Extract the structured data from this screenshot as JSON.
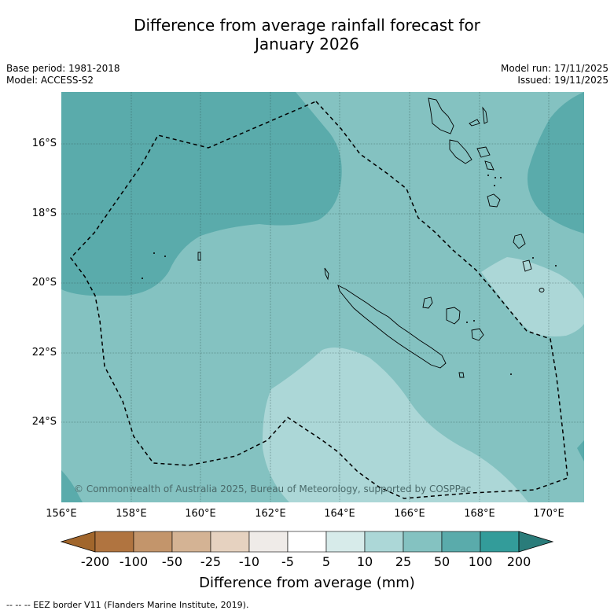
{
  "title_line1": "Difference from average rainfall forecast for",
  "title_line2": "January 2026",
  "meta": {
    "base_period": "Base period: 1981-2018",
    "model": "Model: ACCESS-S2",
    "model_run": "Model run: 17/11/2025",
    "issued": "Issued: 19/11/2025"
  },
  "map": {
    "lat_labels": [
      "16°S",
      "18°S",
      "20°S",
      "22°S",
      "24°S"
    ],
    "lon_labels": [
      "156°E",
      "158°E",
      "160°E",
      "162°E",
      "164°E",
      "166°E",
      "168°E",
      "170°E"
    ],
    "copyright": "© Commonwealth of Australia 2025, Bureau of Meteorology, supported by COSPPac",
    "colors": {
      "band_50_100": "#5aabab",
      "band_25_50": "#84c2c1",
      "band_10_25": "#acd7d7",
      "coastline": "#000000",
      "eez_border": "#000000"
    }
  },
  "colorbar": {
    "labels": [
      "-200",
      "-100",
      "-50",
      "-25",
      "-10",
      "-5",
      "5",
      "10",
      "25",
      "50",
      "100",
      "200"
    ],
    "colors": [
      "#a1662c",
      "#b07440",
      "#c3956b",
      "#d4b394",
      "#e6d2c0",
      "#efebe8",
      "#ffffff",
      "#d7ebea",
      "#acd7d7",
      "#84c2c1",
      "#5aabab",
      "#339c9a",
      "#2a7c7a"
    ],
    "title": "Difference from average (mm)"
  },
  "footer": "--  --  -- EEZ border V11 (Flanders Marine Institute, 2019)."
}
